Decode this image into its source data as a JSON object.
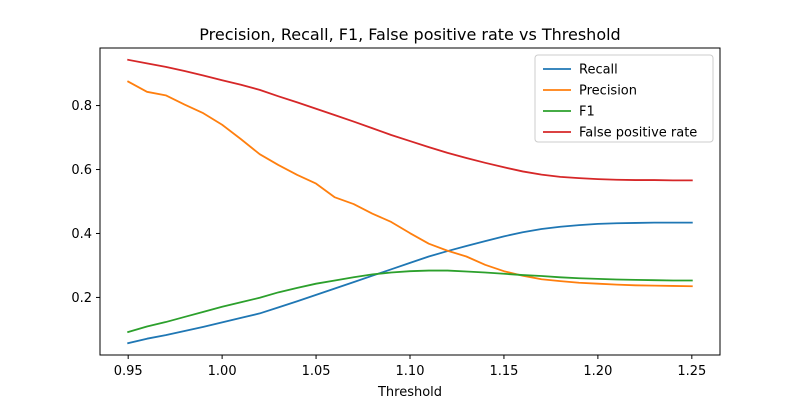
{
  "chart_data": {
    "type": "line",
    "title": "Precision, Recall, F1, False positive rate vs Threshold",
    "xlabel": "Threshold",
    "ylabel": "",
    "xlim": [
      0.935,
      1.265
    ],
    "ylim": [
      0.02,
      0.98
    ],
    "x_ticks": [
      0.95,
      1.0,
      1.05,
      1.1,
      1.15,
      1.2,
      1.25
    ],
    "x_tick_labels": [
      "0.95",
      "1.00",
      "1.05",
      "1.10",
      "1.15",
      "1.20",
      "1.25"
    ],
    "y_ticks": [
      0.2,
      0.4,
      0.6,
      0.8
    ],
    "y_tick_labels": [
      "0.2",
      "0.4",
      "0.6",
      "0.8"
    ],
    "grid": false,
    "legend_position": "top-right",
    "x": [
      0.95,
      0.96,
      0.97,
      0.98,
      0.99,
      1.0,
      1.01,
      1.02,
      1.03,
      1.04,
      1.05,
      1.06,
      1.07,
      1.08,
      1.09,
      1.1,
      1.11,
      1.12,
      1.13,
      1.14,
      1.15,
      1.16,
      1.17,
      1.18,
      1.19,
      1.2,
      1.21,
      1.22,
      1.23,
      1.24,
      1.25
    ],
    "series": [
      {
        "name": "Recall",
        "color": "#1f77b4",
        "values": [
          0.057,
          0.071,
          0.082,
          0.095,
          0.108,
          0.122,
          0.136,
          0.15,
          0.169,
          0.188,
          0.208,
          0.228,
          0.248,
          0.268,
          0.288,
          0.308,
          0.328,
          0.345,
          0.361,
          0.376,
          0.391,
          0.404,
          0.414,
          0.421,
          0.426,
          0.43,
          0.432,
          0.433,
          0.434,
          0.434,
          0.434
        ]
      },
      {
        "name": "Precision",
        "color": "#ff7f0e",
        "values": [
          0.875,
          0.843,
          0.832,
          0.803,
          0.776,
          0.74,
          0.695,
          0.648,
          0.614,
          0.583,
          0.556,
          0.513,
          0.492,
          0.462,
          0.436,
          0.401,
          0.368,
          0.346,
          0.328,
          0.302,
          0.282,
          0.268,
          0.257,
          0.251,
          0.246,
          0.243,
          0.24,
          0.238,
          0.237,
          0.236,
          0.235
        ]
      },
      {
        "name": "F1",
        "color": "#2ca02c",
        "values": [
          0.092,
          0.109,
          0.123,
          0.139,
          0.155,
          0.171,
          0.185,
          0.199,
          0.216,
          0.23,
          0.243,
          0.253,
          0.263,
          0.272,
          0.278,
          0.282,
          0.284,
          0.284,
          0.281,
          0.278,
          0.274,
          0.27,
          0.267,
          0.263,
          0.26,
          0.258,
          0.256,
          0.255,
          0.254,
          0.253,
          0.253
        ]
      },
      {
        "name": "False positive rate",
        "color": "#d62728",
        "values": [
          0.943,
          0.932,
          0.921,
          0.908,
          0.894,
          0.879,
          0.865,
          0.849,
          0.829,
          0.81,
          0.79,
          0.77,
          0.75,
          0.729,
          0.708,
          0.689,
          0.67,
          0.652,
          0.636,
          0.621,
          0.607,
          0.594,
          0.584,
          0.577,
          0.573,
          0.57,
          0.568,
          0.567,
          0.567,
          0.566,
          0.566
        ]
      }
    ]
  }
}
